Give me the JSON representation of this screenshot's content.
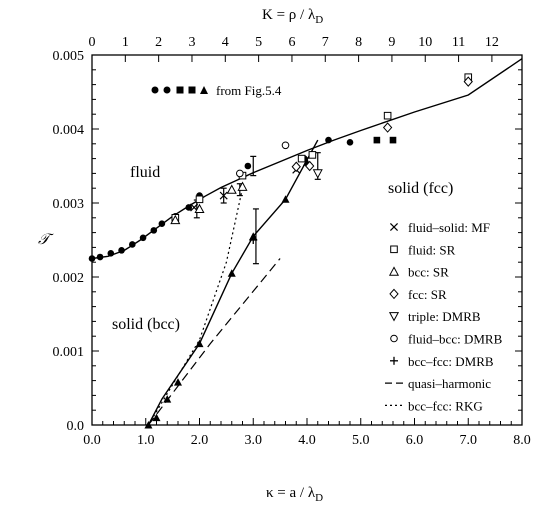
{
  "chart_data": {
    "type": "scatter",
    "xlabel_bottom": "κ = a / λ",
    "xlabel_bottom_sub": "D",
    "xlabel_top": "K = ρ / λ",
    "xlabel_top_sub": "D",
    "ylabel": "𝒯",
    "xlim": [
      0.0,
      8.0
    ],
    "ylim": [
      0.0,
      0.005
    ],
    "x_ticks": [
      "0.0",
      "1.0",
      "2.0",
      "3.0",
      "4.0",
      "5.0",
      "6.0",
      "7.0",
      "8.0"
    ],
    "y_ticks": [
      "0.0",
      "0.001",
      "0.002",
      "0.003",
      "0.004",
      "0.005"
    ],
    "top_axis": {
      "values": [
        0,
        1,
        2,
        3,
        4,
        5,
        6,
        7,
        8,
        9,
        10,
        11,
        12
      ],
      "labels": [
        "0",
        "1",
        "2",
        "3",
        "4",
        "5",
        "6",
        "7",
        "8",
        "9",
        "10",
        "11",
        "12"
      ],
      "kappa": [
        0.0,
        0.62,
        1.24,
        1.86,
        2.48,
        3.1,
        3.72,
        4.34,
        4.96,
        5.58,
        6.2,
        6.82,
        7.44
      ]
    },
    "region_labels": [
      "fluid",
      "solid (fcc)",
      "solid (bcc)"
    ],
    "fig54_label": "from Fig.5.4",
    "legend": [
      {
        "key": "mf",
        "label": "fluid–solid: MF"
      },
      {
        "key": "fluid_sr",
        "label": "fluid: SR"
      },
      {
        "key": "bcc_sr",
        "label": "bcc: SR"
      },
      {
        "key": "fcc_sr",
        "label": "fcc: SR"
      },
      {
        "key": "triple",
        "label": "triple: DMRB"
      },
      {
        "key": "fluid_bcc",
        "label": "fluid–bcc: DMRB"
      },
      {
        "key": "bcc_fcc",
        "label": "bcc–fcc: DMRB"
      },
      {
        "key": "qh",
        "label": "quasi–harmonic"
      },
      {
        "key": "rkg",
        "label": "bcc–fcc: RKG"
      }
    ],
    "lines": {
      "fluid_solid": [
        [
          0.0,
          0.00225
        ],
        [
          0.3,
          0.00228
        ],
        [
          0.6,
          0.00236
        ],
        [
          0.9,
          0.0025
        ],
        [
          1.2,
          0.00266
        ],
        [
          1.5,
          0.00282
        ],
        [
          1.8,
          0.00296
        ],
        [
          2.1,
          0.00309
        ],
        [
          2.4,
          0.00321
        ],
        [
          2.7,
          0.00331
        ],
        [
          3.0,
          0.00341
        ],
        [
          3.5,
          0.00356
        ],
        [
          4.0,
          0.00371
        ],
        [
          4.5,
          0.00385
        ],
        [
          5.0,
          0.00398
        ],
        [
          6.0,
          0.00423
        ],
        [
          7.0,
          0.00446
        ],
        [
          8.0,
          0.00495
        ]
      ],
      "fluid_bcc_line": [
        [
          1.05,
          0.0
        ],
        [
          1.3,
          0.00035
        ],
        [
          2.0,
          0.0011
        ],
        [
          2.6,
          0.00205
        ],
        [
          3.0,
          0.00255
        ],
        [
          3.6,
          0.00305
        ],
        [
          4.2,
          0.00385
        ]
      ],
      "qh": [
        [
          1.05,
          0.0
        ],
        [
          2.2,
          0.0011
        ],
        [
          3.5,
          0.00225
        ]
      ],
      "rkg": [
        [
          1.05,
          0.0
        ],
        [
          2.0,
          0.00115
        ],
        [
          2.5,
          0.0022
        ],
        [
          2.8,
          0.0032
        ]
      ]
    },
    "points": {
      "circles_filled": [
        [
          0.0,
          0.00225
        ],
        [
          0.15,
          0.00227
        ],
        [
          0.35,
          0.00232
        ],
        [
          0.55,
          0.00236
        ],
        [
          0.75,
          0.00244
        ],
        [
          0.95,
          0.00253
        ],
        [
          1.15,
          0.00263
        ],
        [
          1.3,
          0.00272
        ],
        [
          1.55,
          0.00282
        ],
        [
          1.8,
          0.00294
        ],
        [
          2.0,
          0.0031
        ],
        [
          2.9,
          0.0035
        ],
        [
          3.95,
          0.0036
        ],
        [
          4.4,
          0.00385
        ],
        [
          4.8,
          0.00382
        ]
      ],
      "squares_filled": [
        [
          5.3,
          0.00385
        ],
        [
          5.6,
          0.00385
        ]
      ],
      "triangles_filled": [
        [
          1.05,
          0.0
        ],
        [
          1.2,
          0.0001
        ],
        [
          1.4,
          0.00035
        ],
        [
          1.6,
          0.00058
        ],
        [
          2.0,
          0.0011
        ],
        [
          2.6,
          0.00205
        ],
        [
          3.0,
          0.00255
        ],
        [
          3.6,
          0.00305
        ],
        [
          4.0,
          0.00355
        ]
      ],
      "mf": [
        [
          1.9,
          0.00294
        ],
        [
          2.45,
          0.0031
        ],
        [
          3.8,
          0.00345
        ]
      ],
      "fluid_sr": [
        [
          1.55,
          0.0028
        ],
        [
          2.0,
          0.00305
        ],
        [
          2.8,
          0.00337
        ],
        [
          3.9,
          0.0036
        ],
        [
          4.1,
          0.00365
        ],
        [
          5.5,
          0.00418
        ],
        [
          7.0,
          0.0047
        ]
      ],
      "bcc_sr": [
        [
          1.55,
          0.00277
        ],
        [
          2.0,
          0.00292
        ],
        [
          2.6,
          0.00318
        ],
        [
          2.8,
          0.00322
        ]
      ],
      "fcc_sr": [
        [
          3.8,
          0.00349
        ],
        [
          4.05,
          0.0035
        ],
        [
          5.5,
          0.00402
        ],
        [
          7.0,
          0.00464
        ]
      ],
      "triple": [
        [
          4.2,
          0.0034
        ]
      ],
      "fluid_bcc": [
        [
          2.75,
          0.0034
        ],
        [
          3.6,
          0.00378
        ]
      ],
      "bcc_fcc": [
        [
          3.0,
          0.0025
        ]
      ]
    },
    "errorbars": [
      [
        1.95,
        0.00292,
        0.00012
      ],
      [
        2.45,
        0.0031,
        0.0001
      ],
      [
        2.75,
        0.00318,
        8e-05
      ],
      [
        3.0,
        0.0035,
        0.00013
      ],
      [
        3.05,
        0.00255,
        0.00037
      ],
      [
        4.2,
        0.0035,
        0.00018
      ]
    ]
  }
}
